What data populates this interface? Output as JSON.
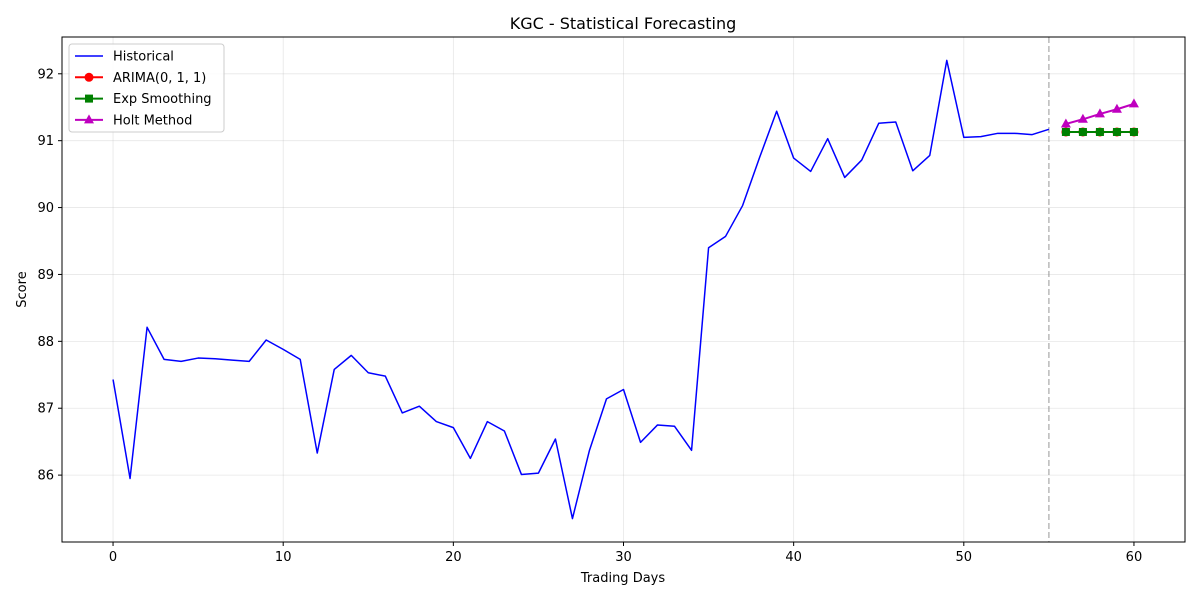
{
  "chart_data": {
    "type": "line",
    "title": "KGC - Statistical Forecasting",
    "xlabel": "Trading Days",
    "ylabel": "Score",
    "xlim": [
      -3,
      63
    ],
    "ylim": [
      85.0,
      92.55
    ],
    "xticks": [
      0,
      10,
      20,
      30,
      40,
      50,
      60
    ],
    "yticks": [
      86,
      87,
      88,
      89,
      90,
      91,
      92
    ],
    "grid": true,
    "legend_position": "top-left",
    "forecast_start_x": 55,
    "series": [
      {
        "name": "Historical",
        "color": "#0000ff",
        "marker": "none",
        "x": [
          0,
          1,
          2,
          3,
          4,
          5,
          6,
          7,
          8,
          9,
          10,
          11,
          12,
          13,
          14,
          15,
          16,
          17,
          18,
          19,
          20,
          21,
          22,
          23,
          24,
          25,
          26,
          27,
          28,
          29,
          30,
          31,
          32,
          33,
          34,
          35,
          36,
          37,
          38,
          39,
          40,
          41,
          42,
          43,
          44,
          45,
          46,
          47,
          48,
          49,
          50,
          51,
          52,
          53,
          54,
          55
        ],
        "values": [
          87.43,
          85.95,
          88.21,
          87.73,
          87.7,
          87.75,
          87.74,
          87.72,
          87.7,
          88.02,
          87.88,
          87.73,
          86.33,
          87.58,
          87.79,
          87.53,
          87.48,
          86.93,
          87.03,
          86.8,
          86.71,
          86.25,
          86.8,
          86.66,
          86.01,
          86.03,
          86.54,
          85.35,
          86.37,
          87.14,
          87.28,
          86.49,
          86.75,
          86.73,
          86.37,
          89.4,
          89.57,
          90.03,
          90.75,
          91.44,
          90.74,
          90.54,
          91.03,
          90.45,
          90.71,
          91.26,
          91.28,
          90.55,
          90.78,
          92.2,
          91.05,
          91.06,
          91.11,
          91.11,
          91.09,
          91.17
        ]
      },
      {
        "name": "ARIMA(0, 1, 1)",
        "color": "#ff0000",
        "marker": "circle",
        "x": [
          56,
          57,
          58,
          59,
          60
        ],
        "values": [
          91.13,
          91.13,
          91.13,
          91.13,
          91.13
        ]
      },
      {
        "name": "Exp Smoothing",
        "color": "#008000",
        "marker": "square",
        "x": [
          56,
          57,
          58,
          59,
          60
        ],
        "values": [
          91.13,
          91.13,
          91.13,
          91.13,
          91.13
        ]
      },
      {
        "name": "Holt Method",
        "color": "#bf00bf",
        "marker": "triangle",
        "x": [
          56,
          57,
          58,
          59,
          60
        ],
        "values": [
          91.25,
          91.32,
          91.4,
          91.47,
          91.55
        ]
      }
    ]
  }
}
